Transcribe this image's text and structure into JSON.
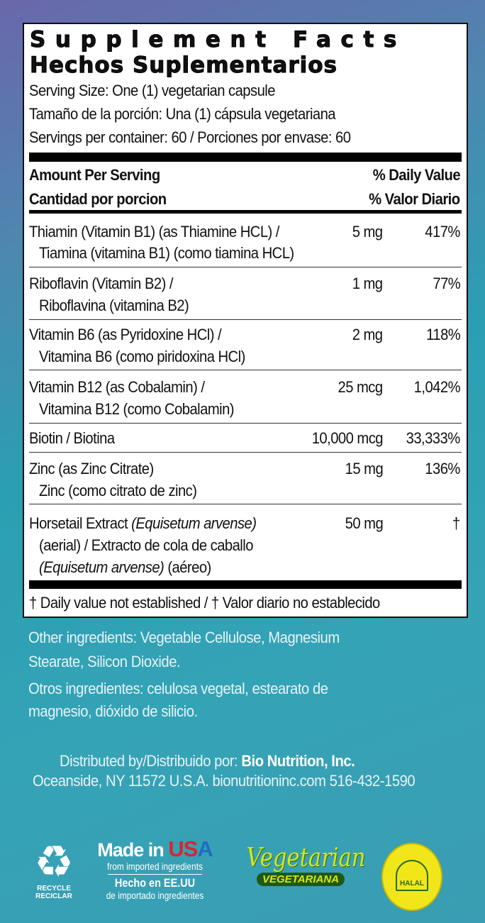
{
  "title_en": "Supplement Facts",
  "title_es": "Hechos Suplementarios",
  "serving_size": "Serving Size: One (1) vegetarian capsule",
  "serving_size_es": "Tamaño de la porción: Una (1) cápsula vegetariana",
  "servings_per_container": "Servings per container: 60 / Porciones por envase: 60",
  "header": {
    "amount_en": "Amount Per Serving",
    "amount_es": "Cantidad por porcion",
    "dv_en": "% Daily Value",
    "dv_es": "% Valor Diario"
  },
  "rows": [
    {
      "name": "Thiamin (Vitamin B1) (as Thiamine HCL) /",
      "name_es": "Tiamina (vitamina B1) (como tiamina HCL)",
      "amount": "5 mg",
      "dv": "417%"
    },
    {
      "name": "Riboflavin (Vitamin B2) /",
      "name_es": "Riboflavina (vitamina B2)",
      "amount": "1 mg",
      "dv": "77%"
    },
    {
      "name": "Vitamin B6 (as Pyridoxine HCl) /",
      "name_es": "Vitamina B6 (como piridoxina HCl)",
      "amount": "2 mg",
      "dv": "118%"
    },
    {
      "name": "Vitamin B12 (as Cobalamin) /",
      "name_es": "Vitamina B12 (como Cobalamin)",
      "amount": "25 mcg",
      "dv": "1,042%"
    },
    {
      "name": "Biotin / Biotina",
      "amount": "10,000 mcg",
      "dv": "33,333%"
    },
    {
      "name": "Zinc (as Zinc Citrate)",
      "name_es": "Zinc (como citrato de zinc)",
      "amount": "15 mg",
      "dv": "136%"
    },
    {
      "name": "Horsetail Extract",
      "name_italic": "(Equisetum arvense)",
      "line2": "(aerial) / Extracto de cola de caballo",
      "line3_italic": "(Equisetum arvense)",
      "line3": " (aéreo)",
      "amount": "50 mg",
      "dv": "†"
    }
  ],
  "footnote": "† Daily value not established / † Valor diario no establecido",
  "other_ingredients": [
    "Other ingredients: Vegetable Cellulose, Magnesium",
    "Stearate, Silicon Dioxide.",
    "Otros ingredientes: celulosa vegetal, estearato de",
    "magnesio, dióxido de silicio."
  ],
  "distributor": {
    "label": "Distributed by/Distribuido por: ",
    "name": "Bio Nutrition, Inc.",
    "address": "Oceanside, NY 11572 U.S.A.  bionutritioninc.com 516-432-1590"
  },
  "logos": {
    "recycle": [
      "RECYCLE",
      "RECICLAR"
    ],
    "made_in": "Made in ",
    "usa": [
      "U",
      "S",
      "A"
    ],
    "from": "from imported ingredients",
    "hecho": "Hecho en EE.UU",
    "de": "de importado ingredientes",
    "vegetarian": "Vegetarian",
    "vegetariana": "VEGETARIANA",
    "halal": "HALAL"
  },
  "colors": {
    "usa_red": "#d9252f",
    "usa_blue": "#1d6fc4",
    "veg_green": "#3c8a1e",
    "halal_yellow": "#f1e61a"
  }
}
